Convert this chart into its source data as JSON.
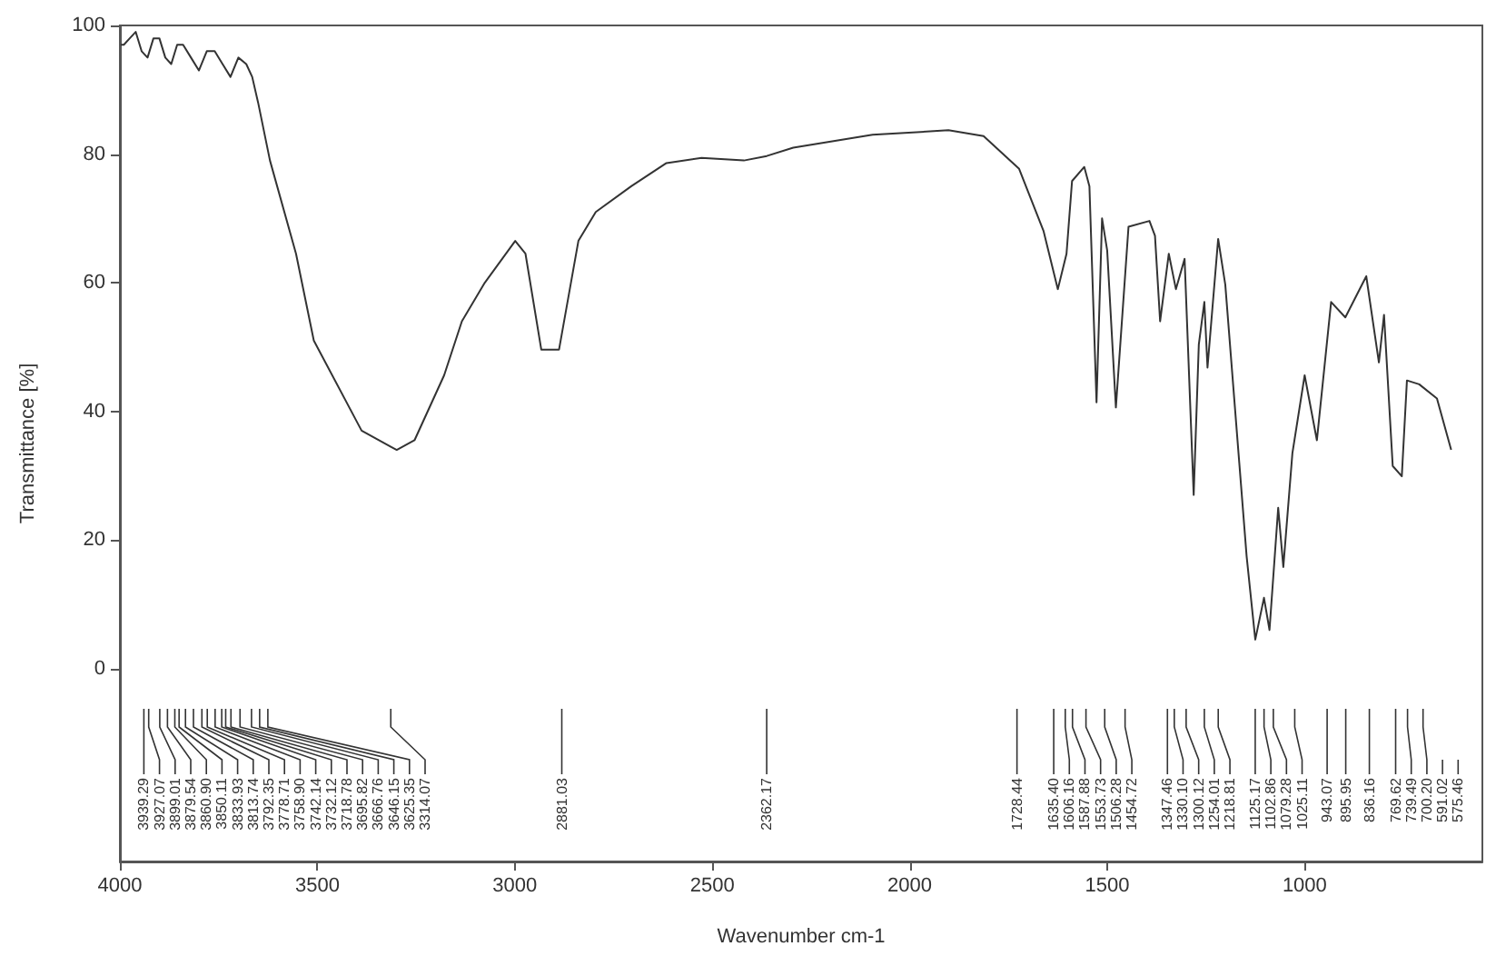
{
  "chart_data": {
    "type": "line",
    "xlabel": "Wavenumber cm-1",
    "ylabel": "Transmittance [%]",
    "xlim": [
      4000,
      550
    ],
    "xticks": [
      4000,
      3500,
      3000,
      2500,
      2000,
      1500,
      1000
    ],
    "ylim": [
      -30,
      100
    ],
    "yticks": [
      0,
      20,
      40,
      60,
      80,
      100
    ],
    "grid": false,
    "series": [
      {
        "color": "#333333",
        "x": [
          3998,
          3990,
          3975,
          3960,
          3945,
          3930,
          3915,
          3900,
          3885,
          3870,
          3855,
          3840,
          3820,
          3800,
          3780,
          3760,
          3740,
          3720,
          3700,
          3680,
          3665,
          3650,
          3620,
          3554,
          3509,
          3388,
          3314,
          3299,
          3254,
          3179,
          3134,
          3076,
          2999,
          2973,
          2933,
          2888,
          2839,
          2795,
          2705,
          2616,
          2527,
          2420,
          2362,
          2295,
          2094,
          1902,
          1813,
          1723,
          1661,
          1625,
          1603,
          1589,
          1558,
          1545,
          1527,
          1513,
          1500,
          1478,
          1446,
          1393,
          1379,
          1366,
          1344,
          1326,
          1304,
          1281,
          1268,
          1254,
          1246,
          1219,
          1201,
          1147,
          1125,
          1103,
          1089,
          1067,
          1054,
          1031,
          1000,
          969,
          933,
          897,
          844,
          812,
          799,
          777,
          754,
          741,
          710,
          665,
          629
        ],
        "values": [
          97,
          97,
          98,
          99,
          96,
          95,
          98,
          98,
          95,
          94,
          97,
          97,
          95,
          93,
          96,
          96,
          94,
          92,
          95,
          94,
          92,
          88,
          79,
          64.5,
          51,
          37,
          34.5,
          34,
          35.5,
          45.6,
          54,
          60,
          66.5,
          64.5,
          49.6,
          49.6,
          66.5,
          71,
          75,
          78.6,
          79.4,
          79,
          79.7,
          81,
          83,
          83.7,
          82.8,
          77.7,
          68,
          59,
          64.5,
          75.8,
          78,
          75,
          41.4,
          70,
          65,
          40.6,
          68.7,
          69.6,
          67.3,
          54,
          64.5,
          59,
          63.7,
          27,
          50.4,
          57,
          46.8,
          66.8,
          59.7,
          17.5,
          4.5,
          11,
          6,
          25,
          15.8,
          33.5,
          45.6,
          35.5,
          57,
          54.6,
          61,
          47.6,
          55,
          31.5,
          29.9,
          44.8,
          44.2,
          42,
          34
        ]
      }
    ],
    "annotations": [
      {
        "text": "3939.29",
        "x": 3939.29
      },
      {
        "text": "3927.07",
        "x": 3927.07
      },
      {
        "text": "3899.01",
        "x": 3899.01
      },
      {
        "text": "3879.54",
        "x": 3879.54
      },
      {
        "text": "3860.90",
        "x": 3860.9
      },
      {
        "text": "3850.11",
        "x": 3850.11
      },
      {
        "text": "3833.93",
        "x": 3833.93
      },
      {
        "text": "3813.74",
        "x": 3813.74
      },
      {
        "text": "3792.35",
        "x": 3792.35
      },
      {
        "text": "3778.71",
        "x": 3778.71
      },
      {
        "text": "3758.90",
        "x": 3758.9
      },
      {
        "text": "3742.14",
        "x": 3742.14
      },
      {
        "text": "3732.12",
        "x": 3732.12
      },
      {
        "text": "3718.78",
        "x": 3718.78
      },
      {
        "text": "3695.82",
        "x": 3695.82
      },
      {
        "text": "3666.76",
        "x": 3666.76
      },
      {
        "text": "3646.15",
        "x": 3646.15
      },
      {
        "text": "3625.35",
        "x": 3625.35
      },
      {
        "text": "3314.07",
        "x": 3314.07
      },
      {
        "text": "2881.03",
        "x": 2881.03
      },
      {
        "text": "2362.17",
        "x": 2362.17
      },
      {
        "text": "1728.44",
        "x": 1728.44
      },
      {
        "text": "1635.40",
        "x": 1635.4
      },
      {
        "text": "1606.16",
        "x": 1606.16
      },
      {
        "text": "1587.88",
        "x": 1587.88
      },
      {
        "text": "1553.73",
        "x": 1553.73
      },
      {
        "text": "1506.28",
        "x": 1506.28
      },
      {
        "text": "1454.72",
        "x": 1454.72
      },
      {
        "text": "1347.46",
        "x": 1347.46
      },
      {
        "text": "1330.10",
        "x": 1330.1
      },
      {
        "text": "1300.12",
        "x": 1300.12
      },
      {
        "text": "1254.01",
        "x": 1254.01
      },
      {
        "text": "1218.81",
        "x": 1218.81
      },
      {
        "text": "1125.17",
        "x": 1125.17
      },
      {
        "text": "1102.86",
        "x": 1102.86
      },
      {
        "text": "1079.28",
        "x": 1079.28
      },
      {
        "text": "1025.11",
        "x": 1025.11
      },
      {
        "text": "943.07",
        "x": 943.07
      },
      {
        "text": "895.95",
        "x": 895.95
      },
      {
        "text": "836.16",
        "x": 836.16
      },
      {
        "text": "769.62",
        "x": 769.62
      },
      {
        "text": "739.49",
        "x": 739.49
      },
      {
        "text": "700.20",
        "x": 700.2
      },
      "591.02",
      "575.46"
    ]
  }
}
